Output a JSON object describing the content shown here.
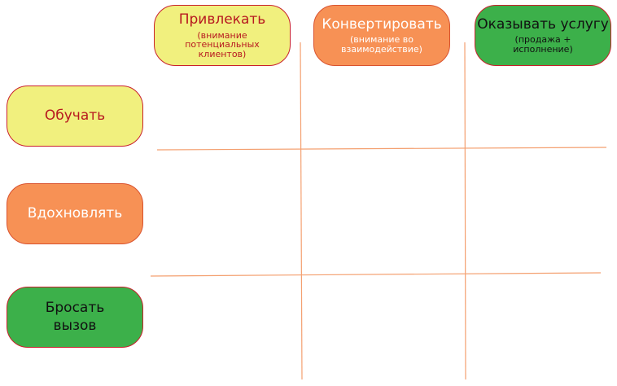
{
  "columns": [
    {
      "title": "Привлекать",
      "subtitle": "(внимание потенциальных клиентов)"
    },
    {
      "title": "Конвертировать",
      "subtitle": "(внимание во взаимодействие)"
    },
    {
      "title": "Оказывать услугу",
      "subtitle": "(продажа + исполнение)"
    }
  ],
  "rows": [
    {
      "title": "Обучать"
    },
    {
      "title": "Вдохновлять"
    },
    {
      "title": "Бросать вызов"
    }
  ],
  "colors": {
    "yellow": "#f1f07e",
    "orange": "#f79155",
    "green": "#3cb04a",
    "grid_line": "#f4a070",
    "border_red": "#c9202c"
  }
}
